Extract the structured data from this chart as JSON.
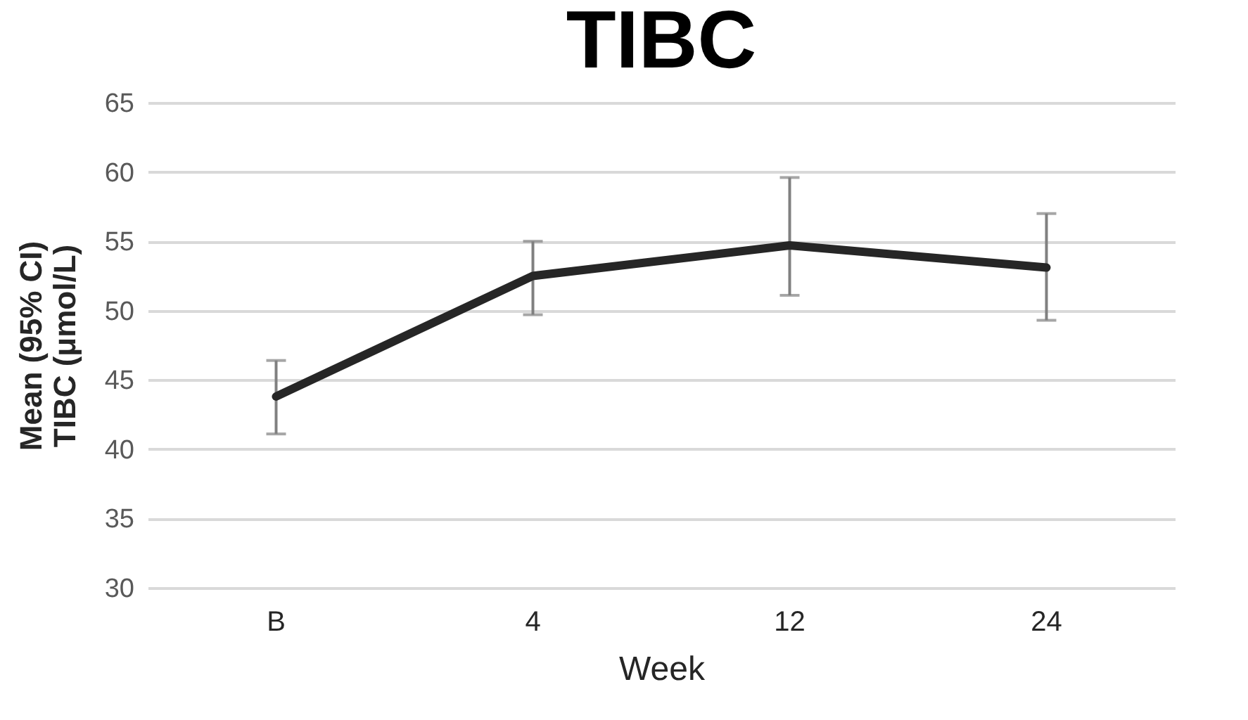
{
  "chart_data": {
    "type": "line",
    "title": "TIBC",
    "xlabel": "Week",
    "ylabel": "Mean (95% CI)\nTIBC (μmol/L)",
    "categories": [
      "B",
      "4",
      "12",
      "24"
    ],
    "series": [
      {
        "color": "#262626",
        "values": [
          43.8,
          52.5,
          54.7,
          53.1
        ],
        "errors": [
          [
            41.1,
            46.4
          ],
          [
            49.7,
            55.0
          ],
          [
            51.1,
            59.6
          ],
          [
            49.3,
            57.0
          ]
        ]
      }
    ],
    "ylim": [
      30,
      65
    ],
    "yticks": [
      30,
      35,
      40,
      45,
      50,
      55,
      60,
      65
    ],
    "grid": "y",
    "legend": false,
    "marker": "none",
    "line_style": "solid"
  }
}
